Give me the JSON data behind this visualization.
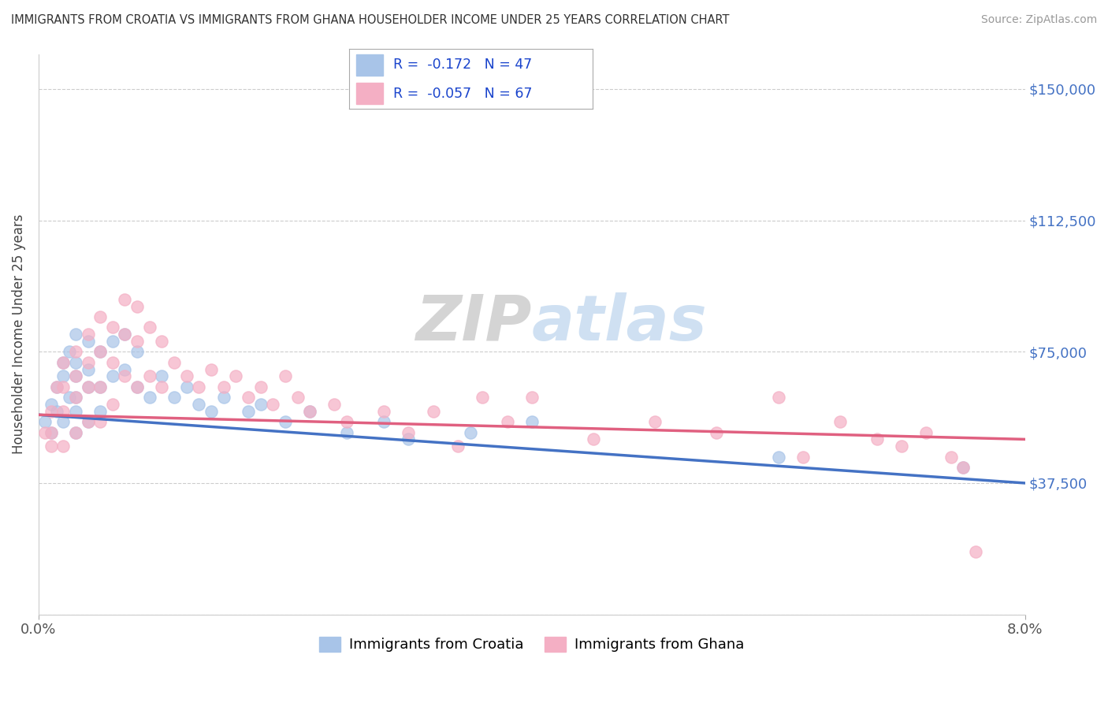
{
  "title": "IMMIGRANTS FROM CROATIA VS IMMIGRANTS FROM GHANA HOUSEHOLDER INCOME UNDER 25 YEARS CORRELATION CHART",
  "source": "Source: ZipAtlas.com",
  "ylabel": "Householder Income Under 25 years",
  "xlim": [
    0.0,
    0.08
  ],
  "ylim": [
    0,
    160000
  ],
  "yticks": [
    0,
    37500,
    75000,
    112500,
    150000
  ],
  "ytick_labels": [
    "",
    "$37,500",
    "$75,000",
    "$112,500",
    "$150,000"
  ],
  "xtick_labels": [
    "0.0%",
    "8.0%"
  ],
  "croatia_color": "#a8c4e8",
  "ghana_color": "#f4afc4",
  "croatia_line_color": "#4472c4",
  "ghana_line_color": "#e06080",
  "r_croatia": -0.172,
  "n_croatia": 47,
  "r_ghana": -0.057,
  "n_ghana": 67,
  "watermark_zip": "ZIP",
  "watermark_atlas": "atlas",
  "croatia_scatter_x": [
    0.0005,
    0.001,
    0.001,
    0.0015,
    0.0015,
    0.002,
    0.002,
    0.002,
    0.0025,
    0.0025,
    0.003,
    0.003,
    0.003,
    0.003,
    0.003,
    0.003,
    0.004,
    0.004,
    0.004,
    0.004,
    0.005,
    0.005,
    0.005,
    0.006,
    0.006,
    0.007,
    0.007,
    0.008,
    0.008,
    0.009,
    0.01,
    0.011,
    0.012,
    0.013,
    0.014,
    0.015,
    0.017,
    0.018,
    0.02,
    0.022,
    0.025,
    0.028,
    0.03,
    0.035,
    0.04,
    0.06,
    0.075
  ],
  "croatia_scatter_y": [
    55000,
    60000,
    52000,
    65000,
    58000,
    72000,
    68000,
    55000,
    75000,
    62000,
    80000,
    72000,
    68000,
    62000,
    58000,
    52000,
    78000,
    70000,
    65000,
    55000,
    75000,
    65000,
    58000,
    78000,
    68000,
    80000,
    70000,
    75000,
    65000,
    62000,
    68000,
    62000,
    65000,
    60000,
    58000,
    62000,
    58000,
    60000,
    55000,
    58000,
    52000,
    55000,
    50000,
    52000,
    55000,
    45000,
    42000
  ],
  "ghana_scatter_x": [
    0.0005,
    0.001,
    0.001,
    0.001,
    0.0015,
    0.002,
    0.002,
    0.002,
    0.002,
    0.003,
    0.003,
    0.003,
    0.003,
    0.004,
    0.004,
    0.004,
    0.004,
    0.005,
    0.005,
    0.005,
    0.005,
    0.006,
    0.006,
    0.006,
    0.007,
    0.007,
    0.007,
    0.008,
    0.008,
    0.008,
    0.009,
    0.009,
    0.01,
    0.01,
    0.011,
    0.012,
    0.013,
    0.014,
    0.015,
    0.016,
    0.017,
    0.018,
    0.019,
    0.02,
    0.021,
    0.022,
    0.024,
    0.025,
    0.028,
    0.03,
    0.032,
    0.034,
    0.036,
    0.038,
    0.04,
    0.045,
    0.05,
    0.055,
    0.06,
    0.062,
    0.065,
    0.068,
    0.07,
    0.072,
    0.074,
    0.075,
    0.076
  ],
  "ghana_scatter_y": [
    52000,
    58000,
    52000,
    48000,
    65000,
    72000,
    65000,
    58000,
    48000,
    75000,
    68000,
    62000,
    52000,
    80000,
    72000,
    65000,
    55000,
    85000,
    75000,
    65000,
    55000,
    82000,
    72000,
    60000,
    90000,
    80000,
    68000,
    88000,
    78000,
    65000,
    82000,
    68000,
    78000,
    65000,
    72000,
    68000,
    65000,
    70000,
    65000,
    68000,
    62000,
    65000,
    60000,
    68000,
    62000,
    58000,
    60000,
    55000,
    58000,
    52000,
    58000,
    48000,
    62000,
    55000,
    62000,
    50000,
    55000,
    52000,
    62000,
    45000,
    55000,
    50000,
    48000,
    52000,
    45000,
    42000,
    18000
  ]
}
